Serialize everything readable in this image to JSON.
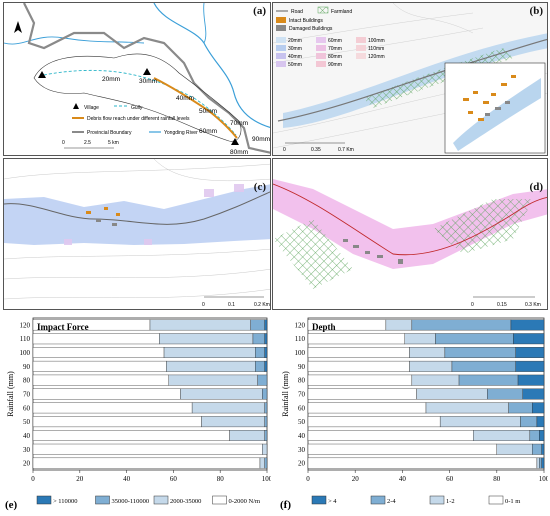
{
  "panel_a": {
    "label": "(a)",
    "rain_labels": [
      "20mm",
      "30mm",
      "40mm",
      "50mm",
      "60mm",
      "70mm",
      "80mm",
      "90mm"
    ],
    "legend": {
      "village": "Village",
      "gully": "Gully",
      "debris": "Debris flow reach under different rainfall levels",
      "boundary": "Provincial Boundary",
      "river": "Yongding River"
    },
    "scale": [
      "0",
      "2.5",
      "5 km"
    ]
  },
  "panel_b": {
    "label": "(b)",
    "legend": {
      "road": "Road",
      "farmland": "Farmland",
      "intact": "Intact Buildings",
      "damaged": "Damaged Buildings"
    },
    "rain_levels": [
      "20mm",
      "30mm",
      "40mm",
      "50mm",
      "60mm",
      "70mm",
      "80mm",
      "90mm",
      "100mm",
      "110mm",
      "120mm"
    ],
    "scale": [
      "0",
      "0.35",
      "0.7 Km"
    ]
  },
  "panel_c": {
    "label": "(c)",
    "scale": [
      "0",
      "0.1",
      "0.2 Km"
    ]
  },
  "panel_d": {
    "label": "(d)",
    "scale": [
      "0",
      "0.15",
      "0.3 Km"
    ]
  },
  "colors": {
    "impact": [
      "#ffffff",
      "#c5d9ea",
      "#7faed3",
      "#2b79b6"
    ],
    "depth": [
      "#ffffff",
      "#c5d9ea",
      "#7faed3",
      "#2b79b6"
    ]
  },
  "chart_data": [
    {
      "type": "bar",
      "orientation": "horizontal-stacked",
      "panel": "(e)",
      "title": "Impact Force",
      "ylabel": "Rainfall (mm)",
      "categories": [
        20,
        30,
        40,
        50,
        60,
        70,
        80,
        90,
        100,
        110,
        120
      ],
      "xlim": [
        0,
        100
      ],
      "xticks": [
        "0",
        "20",
        "40",
        "60",
        "80",
        "100"
      ],
      "series": [
        {
          "name": "0-2000 N/m",
          "values": [
            97,
            98,
            84,
            72,
            68,
            63,
            58,
            57,
            56,
            54,
            50
          ]
        },
        {
          "name": "2000-35000",
          "values": [
            2,
            2,
            15,
            27,
            31,
            35,
            38,
            38,
            39,
            40,
            43
          ]
        },
        {
          "name": "35000-110000",
          "values": [
            1,
            0,
            1,
            1,
            1,
            2,
            4,
            4,
            4,
            5,
            6
          ]
        },
        {
          "name": "> 110000",
          "values": [
            0,
            0,
            0,
            0,
            0,
            0,
            0,
            1,
            1,
            1,
            1
          ]
        }
      ],
      "legend": [
        "> 110000",
        "35000-110000",
        "2000-35000",
        "0-2000 N/m"
      ]
    },
    {
      "type": "bar",
      "orientation": "horizontal-stacked",
      "panel": "(f)",
      "title": "Depth",
      "ylabel": "Rainfall (mm)",
      "categories": [
        20,
        30,
        40,
        50,
        60,
        70,
        80,
        90,
        100,
        110,
        120
      ],
      "xlim": [
        0,
        100
      ],
      "xticks": [
        "0",
        "20",
        "40",
        "60",
        "80",
        "100"
      ],
      "series": [
        {
          "name": "0-1 m",
          "values": [
            97,
            80,
            70,
            56,
            50,
            46,
            44,
            43,
            43,
            41,
            33
          ]
        },
        {
          "name": "1-2",
          "values": [
            1,
            15,
            24,
            34,
            35,
            30,
            20,
            18,
            15,
            13,
            11
          ]
        },
        {
          "name": "2-4",
          "values": [
            1,
            4,
            4,
            7,
            10,
            15,
            25,
            27,
            30,
            33,
            42
          ]
        },
        {
          "name": "> 4",
          "values": [
            1,
            1,
            2,
            3,
            5,
            9,
            11,
            12,
            12,
            13,
            14
          ]
        }
      ],
      "legend": [
        "> 4",
        "2-4",
        "1-2",
        "0-1 m"
      ]
    }
  ]
}
